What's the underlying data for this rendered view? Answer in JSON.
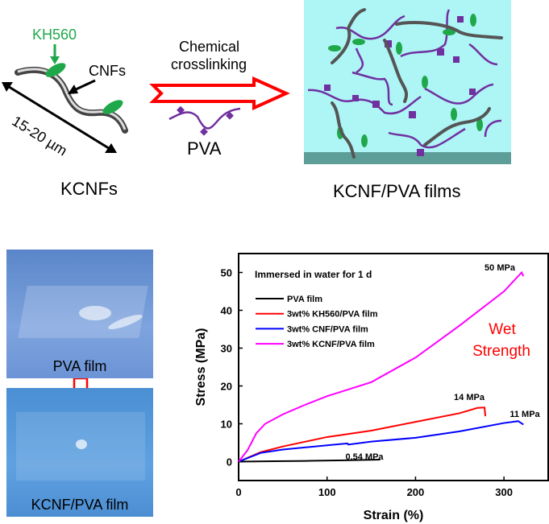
{
  "scheme": {
    "kh560_label": "KH560",
    "cnfs_label": "CNFs",
    "length_label": "15-20 µm",
    "kcnfs_caption": "KCNFs",
    "reaction_label_line1": "Chemical",
    "reaction_label_line2": "crosslinking",
    "pva_label": "PVA",
    "film_caption": "KCNF/PVA films"
  },
  "photos": {
    "top_caption": "PVA film",
    "bottom_caption": "KCNF/PVA film"
  },
  "colors": {
    "kh560": "#1fa84a",
    "pva": "#7030a0",
    "arrow": "#ff0000",
    "film_bg": "#aef5f5",
    "film_base": "#5e9e98"
  },
  "chart_data": {
    "type": "line",
    "title": "Immersed in water for 1 d",
    "xlabel": "Strain (%)",
    "ylabel": "Stress (MPa)",
    "xlim": [
      0,
      350
    ],
    "ylim": [
      -5,
      55
    ],
    "xticks": [
      0,
      100,
      200,
      300
    ],
    "yticks": [
      0,
      10,
      20,
      30,
      40,
      50
    ],
    "legend_position": "top-left",
    "annotation": {
      "line1": "Wet",
      "line2": "Strength"
    },
    "series": [
      {
        "name": "PVA film",
        "color": "#000000",
        "label": "0.54 MPa",
        "x": [
          0,
          40,
          80,
          120,
          160
        ],
        "y": [
          0,
          0.1,
          0.2,
          0.35,
          0.54
        ]
      },
      {
        "name": "3wt% KH560/PVA film",
        "color": "#ff0000",
        "label": "14 MPa",
        "x": [
          0,
          25,
          50,
          100,
          150,
          200,
          250,
          270,
          278,
          279
        ],
        "y": [
          0,
          2.5,
          4,
          6.5,
          8.2,
          10.5,
          12.8,
          14.2,
          14.3,
          12
        ]
      },
      {
        "name": "3wt% CNF/PVA film",
        "color": "#0000ff",
        "label": "11 MPa",
        "x": [
          0,
          25,
          50,
          100,
          123,
          124,
          150,
          200,
          250,
          300,
          316,
          322
        ],
        "y": [
          0,
          2.3,
          3.2,
          4.3,
          4.8,
          4.5,
          5.3,
          6.3,
          8,
          10.2,
          10.7,
          9.8
        ]
      },
      {
        "name": "3wt% KCNF/PVA film",
        "color": "#ff00ff",
        "label": "50 MPa",
        "x": [
          0,
          10,
          20,
          30,
          50,
          75,
          100,
          150,
          200,
          250,
          300,
          320,
          322
        ],
        "y": [
          0,
          3,
          7.5,
          10,
          12.5,
          15,
          17.3,
          21,
          27.5,
          36,
          45,
          50,
          49
        ]
      }
    ]
  }
}
